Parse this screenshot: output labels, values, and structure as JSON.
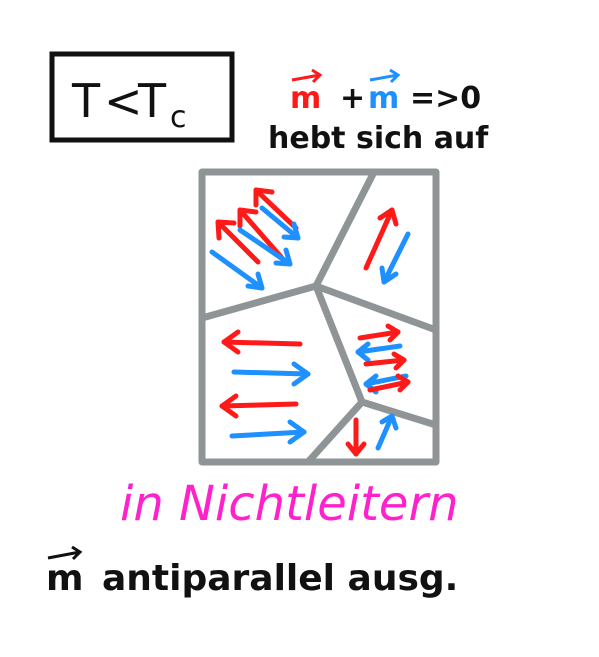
{
  "condition": {
    "T": "T",
    "op": "<",
    "Tc_base": "T",
    "Tc_sub": "c"
  },
  "equation": {
    "m1": "m",
    "plus": "+",
    "m2": "m",
    "result": "=>0",
    "m1_color": "#ff1a1a",
    "m2_color": "#1e90ff"
  },
  "subtitle": "hebt sich auf",
  "material": {
    "text": "in Nichtleitern",
    "color": "#ff22cc"
  },
  "bottom": {
    "vector": "m",
    "text": "antiparallel ausg."
  },
  "colors": {
    "up_arrow": "#ff1a1a",
    "down_arrow": "#1e90ff",
    "domain_wall": "#8f9596"
  }
}
